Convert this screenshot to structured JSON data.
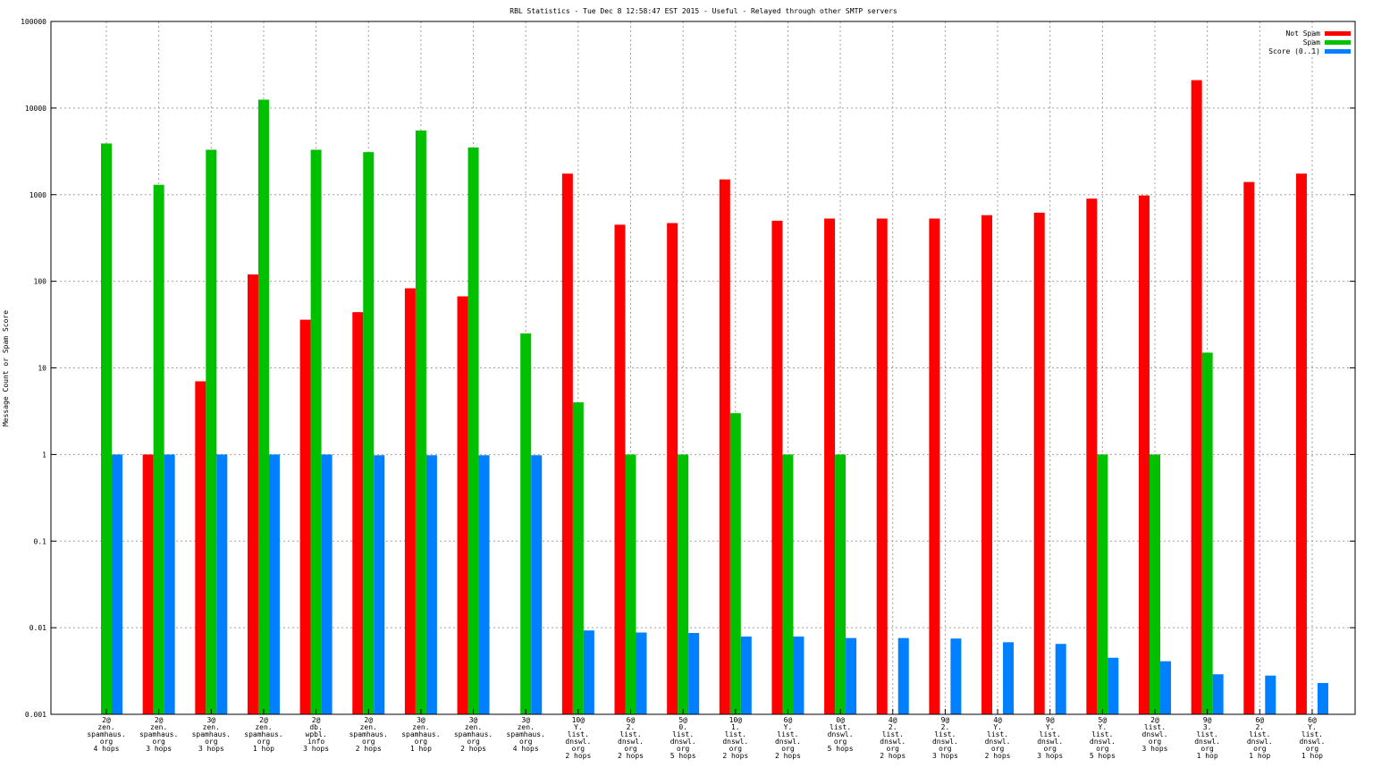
{
  "chart_data": {
    "type": "bar",
    "title": "RBL Statistics - Tue Dec  8 12:58:47 EST 2015 - Useful - Relayed through other SMTP servers",
    "xlabel": "",
    "ylabel": "Message Count or Spam Score",
    "yscale": "log",
    "ylim": [
      0.001,
      100000
    ],
    "yticks": [
      "100000",
      "10000",
      "1000",
      "100",
      "10",
      "1",
      "0.1",
      "0.01",
      "0.001"
    ],
    "grid": true,
    "legend_position": "top-right",
    "categories": [
      [
        "2@",
        "zen.",
        "spamhaus.",
        "org",
        "4 hops"
      ],
      [
        "2@",
        "zen.",
        "spamhaus.",
        "org",
        "3 hops"
      ],
      [
        "3@",
        "zen.",
        "spamhaus.",
        "org",
        "3 hops"
      ],
      [
        "2@",
        "zen.",
        "spamhaus.",
        "org",
        "1 hop"
      ],
      [
        "2@",
        "db.",
        "wpbl.",
        "info",
        "3 hops"
      ],
      [
        "2@",
        "zen.",
        "spamhaus.",
        "org",
        "2 hops"
      ],
      [
        "3@",
        "zen.",
        "spamhaus.",
        "org",
        "1 hop"
      ],
      [
        "3@",
        "zen.",
        "spamhaus.",
        "org",
        "2 hops"
      ],
      [
        "3@",
        "zen.",
        "spamhaus.",
        "org",
        "4 hops"
      ],
      [
        "10@",
        "Y.",
        "list.",
        "dnswl.",
        "org",
        "2 hops"
      ],
      [
        "6@",
        "2.",
        "list.",
        "dnswl.",
        "org",
        "2 hops"
      ],
      [
        "5@",
        "0.",
        "list.",
        "dnswl.",
        "org",
        "5 hops"
      ],
      [
        "10@",
        "1.",
        "list.",
        "dnswl.",
        "org",
        "2 hops"
      ],
      [
        "6@",
        "Y.",
        "list.",
        "dnswl.",
        "org",
        "2 hops"
      ],
      [
        "0@",
        "list.",
        "dnswl.",
        "org",
        "5 hops"
      ],
      [
        "4@",
        "2.",
        "list.",
        "dnswl.",
        "org",
        "2 hops"
      ],
      [
        "9@",
        "2.",
        "list.",
        "dnswl.",
        "org",
        "3 hops"
      ],
      [
        "4@",
        "Y.",
        "list.",
        "dnswl.",
        "org",
        "2 hops"
      ],
      [
        "9@",
        "Y.",
        "list.",
        "dnswl.",
        "org",
        "3 hops"
      ],
      [
        "5@",
        "Y.",
        "list.",
        "dnswl.",
        "org",
        "5 hops"
      ],
      [
        "2@",
        "list.",
        "dnswl.",
        "org",
        "3 hops"
      ],
      [
        "9@",
        "3.",
        "list.",
        "dnswl.",
        "org",
        "1 hop"
      ],
      [
        "6@",
        "2.",
        "list.",
        "dnswl.",
        "org",
        "1 hop"
      ],
      [
        "6@",
        "Y.",
        "list.",
        "dnswl.",
        "org",
        "1 hop"
      ]
    ],
    "series": [
      {
        "name": "Not Spam",
        "color": "#ff0000",
        "values": [
          null,
          1,
          7,
          120,
          36,
          44,
          83,
          67,
          null,
          1750,
          450,
          470,
          1500,
          500,
          530,
          530,
          530,
          580,
          620,
          900,
          980,
          21000,
          1400,
          1750
        ]
      },
      {
        "name": "Spam",
        "color": "#00c000",
        "values": [
          3900,
          1300,
          3300,
          12500,
          3300,
          3100,
          5500,
          3500,
          25,
          4,
          1,
          1,
          3,
          1,
          1,
          null,
          null,
          null,
          null,
          1,
          1,
          15,
          null,
          null
        ]
      },
      {
        "name": "Score (0..1)",
        "color": "#0080ff",
        "values": [
          1,
          1,
          1,
          1,
          1,
          0.98,
          0.98,
          0.98,
          0.98,
          0.0093,
          0.0088,
          0.0087,
          0.0079,
          0.0079,
          0.0076,
          0.0076,
          0.0075,
          0.0068,
          0.0065,
          0.0045,
          0.0041,
          0.0029,
          0.0028,
          0.0023
        ]
      }
    ]
  }
}
